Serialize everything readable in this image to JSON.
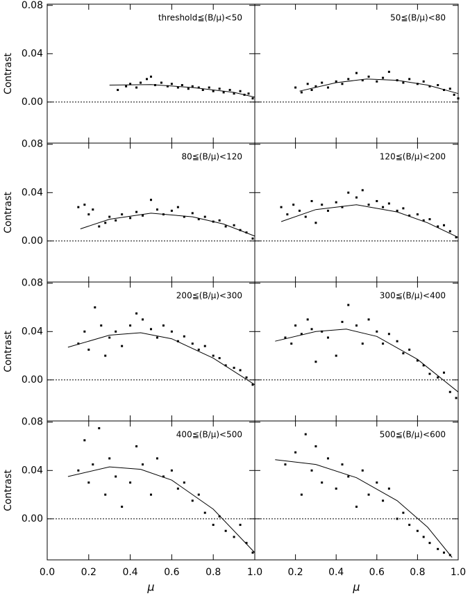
{
  "chart_data": [
    {
      "type": "scatter",
      "annotation": "threshold≦(B/μ)<50",
      "ylabel": "Contrast",
      "xlim": [
        0,
        1
      ],
      "ylim": [
        -0.034,
        0.081
      ],
      "xticks": [
        0,
        0.2,
        0.4,
        0.6,
        0.8,
        1
      ],
      "yticks": [
        {
          "value": 0,
          "label": "0.00"
        },
        0.04,
        0.08
      ],
      "reference_line": 0,
      "x": [
        0.34,
        0.38,
        0.4,
        0.43,
        0.45,
        0.48,
        0.5,
        0.52,
        0.55,
        0.58,
        0.6,
        0.63,
        0.65,
        0.68,
        0.7,
        0.73,
        0.75,
        0.78,
        0.8,
        0.83,
        0.85,
        0.88,
        0.9,
        0.93,
        0.95,
        0.97,
        0.99
      ],
      "values": [
        0.01,
        0.013,
        0.015,
        0.012,
        0.016,
        0.019,
        0.021,
        0.014,
        0.016,
        0.013,
        0.015,
        0.012,
        0.014,
        0.011,
        0.013,
        0.012,
        0.01,
        0.012,
        0.009,
        0.011,
        0.008,
        0.01,
        0.007,
        0.009,
        0.006,
        0.007,
        0.003
      ],
      "fit": {
        "x": [
          0.3,
          0.5,
          0.7,
          0.9,
          1.0
        ],
        "values": [
          0.014,
          0.0145,
          0.012,
          0.008,
          0.004
        ]
      }
    },
    {
      "type": "scatter",
      "annotation": "50≦(B/μ)<80",
      "xlim": [
        0,
        1
      ],
      "ylim": [
        -0.034,
        0.081
      ],
      "xticks": [
        0,
        0.2,
        0.4,
        0.6,
        0.8,
        1
      ],
      "yticks": [
        0,
        0.04,
        0.08
      ],
      "reference_line": 0,
      "x": [
        0.2,
        0.23,
        0.26,
        0.28,
        0.3,
        0.33,
        0.36,
        0.4,
        0.43,
        0.46,
        0.5,
        0.53,
        0.56,
        0.6,
        0.63,
        0.66,
        0.7,
        0.73,
        0.76,
        0.8,
        0.83,
        0.86,
        0.9,
        0.93,
        0.96,
        0.98,
        1.0
      ],
      "values": [
        0.012,
        0.008,
        0.015,
        0.01,
        0.013,
        0.016,
        0.012,
        0.017,
        0.015,
        0.019,
        0.024,
        0.018,
        0.021,
        0.017,
        0.02,
        0.025,
        0.018,
        0.016,
        0.019,
        0.015,
        0.017,
        0.013,
        0.014,
        0.01,
        0.011,
        0.006,
        0.003
      ],
      "fit": {
        "x": [
          0.22,
          0.4,
          0.55,
          0.7,
          0.85,
          1.0
        ],
        "values": [
          0.009,
          0.016,
          0.019,
          0.018,
          0.014,
          0.007
        ]
      }
    },
    {
      "type": "scatter",
      "annotation": "80≦(B/μ)<120",
      "ylabel": "Contrast",
      "xlim": [
        0,
        1
      ],
      "ylim": [
        -0.034,
        0.081
      ],
      "xticks": [
        0,
        0.2,
        0.4,
        0.6,
        0.8,
        1
      ],
      "yticks": [
        {
          "value": 0,
          "label": "0.00"
        },
        0.04,
        0.08
      ],
      "reference_line": 0,
      "x": [
        0.15,
        0.18,
        0.2,
        0.22,
        0.25,
        0.28,
        0.3,
        0.33,
        0.36,
        0.4,
        0.43,
        0.46,
        0.5,
        0.53,
        0.56,
        0.6,
        0.63,
        0.66,
        0.7,
        0.73,
        0.76,
        0.8,
        0.83,
        0.86,
        0.9,
        0.93,
        0.96,
        0.99
      ],
      "values": [
        0.028,
        0.03,
        0.022,
        0.026,
        0.012,
        0.015,
        0.02,
        0.017,
        0.022,
        0.019,
        0.024,
        0.021,
        0.034,
        0.026,
        0.022,
        0.025,
        0.028,
        0.02,
        0.023,
        0.018,
        0.02,
        0.016,
        0.017,
        0.012,
        0.013,
        0.009,
        0.007,
        0.002
      ],
      "fit": {
        "x": [
          0.16,
          0.3,
          0.5,
          0.7,
          0.85,
          1.0
        ],
        "values": [
          0.01,
          0.018,
          0.023,
          0.02,
          0.014,
          0.004
        ]
      }
    },
    {
      "type": "scatter",
      "annotation": "120≦(B/μ)<200",
      "xlim": [
        0,
        1
      ],
      "ylim": [
        -0.034,
        0.081
      ],
      "xticks": [
        0,
        0.2,
        0.4,
        0.6,
        0.8,
        1
      ],
      "yticks": [
        0,
        0.04,
        0.08
      ],
      "reference_line": 0,
      "x": [
        0.13,
        0.16,
        0.19,
        0.22,
        0.25,
        0.28,
        0.3,
        0.33,
        0.36,
        0.4,
        0.43,
        0.46,
        0.5,
        0.53,
        0.56,
        0.6,
        0.63,
        0.66,
        0.7,
        0.73,
        0.76,
        0.8,
        0.83,
        0.86,
        0.9,
        0.93,
        0.96,
        0.99
      ],
      "values": [
        0.028,
        0.022,
        0.03,
        0.025,
        0.02,
        0.033,
        0.015,
        0.03,
        0.025,
        0.032,
        0.028,
        0.04,
        0.036,
        0.042,
        0.03,
        0.033,
        0.028,
        0.031,
        0.025,
        0.027,
        0.021,
        0.022,
        0.017,
        0.018,
        0.012,
        0.013,
        0.008,
        0.003
      ],
      "fit": {
        "x": [
          0.13,
          0.3,
          0.5,
          0.7,
          0.85,
          1.0
        ],
        "values": [
          0.016,
          0.026,
          0.03,
          0.024,
          0.015,
          0.003
        ]
      }
    },
    {
      "type": "scatter",
      "annotation": "200≦(B/μ)<300",
      "ylabel": "Contrast",
      "xlim": [
        0,
        1
      ],
      "ylim": [
        -0.034,
        0.081
      ],
      "xticks": [
        0,
        0.2,
        0.4,
        0.6,
        0.8,
        1
      ],
      "yticks": [
        {
          "value": 0,
          "label": "0.00"
        },
        0.04,
        0.08
      ],
      "reference_line": 0,
      "x": [
        0.15,
        0.18,
        0.2,
        0.23,
        0.26,
        0.28,
        0.3,
        0.33,
        0.36,
        0.4,
        0.43,
        0.46,
        0.5,
        0.53,
        0.56,
        0.6,
        0.63,
        0.66,
        0.7,
        0.73,
        0.76,
        0.8,
        0.83,
        0.86,
        0.9,
        0.93,
        0.96,
        0.99
      ],
      "values": [
        0.03,
        0.04,
        0.025,
        0.06,
        0.045,
        0.02,
        0.035,
        0.04,
        0.028,
        0.045,
        0.055,
        0.05,
        0.042,
        0.035,
        0.045,
        0.04,
        0.032,
        0.036,
        0.03,
        0.025,
        0.028,
        0.02,
        0.018,
        0.012,
        0.01,
        0.008,
        0.002,
        -0.004
      ],
      "fit": {
        "x": [
          0.1,
          0.3,
          0.45,
          0.6,
          0.8,
          1.0
        ],
        "values": [
          0.027,
          0.037,
          0.039,
          0.034,
          0.018,
          -0.004
        ]
      }
    },
    {
      "type": "scatter",
      "annotation": "300≦(B/μ)<400",
      "xlim": [
        0,
        1
      ],
      "ylim": [
        -0.034,
        0.081
      ],
      "xticks": [
        0,
        0.2,
        0.4,
        0.6,
        0.8,
        1
      ],
      "yticks": [
        0,
        0.04,
        0.08
      ],
      "reference_line": 0,
      "x": [
        0.15,
        0.18,
        0.2,
        0.23,
        0.26,
        0.28,
        0.3,
        0.33,
        0.36,
        0.4,
        0.43,
        0.46,
        0.5,
        0.53,
        0.56,
        0.6,
        0.63,
        0.66,
        0.7,
        0.73,
        0.76,
        0.8,
        0.83,
        0.86,
        0.9,
        0.93,
        0.96,
        0.99
      ],
      "values": [
        0.035,
        0.03,
        0.045,
        0.038,
        0.05,
        0.042,
        0.015,
        0.04,
        0.035,
        0.02,
        0.048,
        0.062,
        0.045,
        0.03,
        0.05,
        0.04,
        0.03,
        0.038,
        0.032,
        0.022,
        0.025,
        0.016,
        0.012,
        0.005,
        0.002,
        0.006,
        -0.01,
        -0.015
      ],
      "fit": {
        "x": [
          0.1,
          0.3,
          0.45,
          0.6,
          0.8,
          1.0
        ],
        "values": [
          0.032,
          0.04,
          0.042,
          0.036,
          0.017,
          -0.01
        ]
      }
    },
    {
      "type": "scatter",
      "annotation": "400≦(B/μ)<500",
      "ylabel": "Contrast",
      "xlabel": "μ",
      "xlim": [
        0,
        1
      ],
      "ylim": [
        -0.034,
        0.081
      ],
      "xticks": [
        {
          "value": 0,
          "label": "0.0"
        },
        0.2,
        0.4,
        0.6,
        0.8,
        {
          "value": 1,
          "label": "1.0"
        }
      ],
      "yticks": [
        {
          "value": 0,
          "label": "0.00"
        },
        0.04,
        0.08
      ],
      "reference_line": 0,
      "x": [
        0.15,
        0.18,
        0.2,
        0.22,
        0.25,
        0.28,
        0.3,
        0.33,
        0.36,
        0.4,
        0.43,
        0.46,
        0.5,
        0.53,
        0.56,
        0.6,
        0.63,
        0.66,
        0.7,
        0.73,
        0.76,
        0.8,
        0.83,
        0.86,
        0.9,
        0.93,
        0.96,
        0.99
      ],
      "values": [
        0.04,
        0.065,
        0.03,
        0.045,
        0.075,
        0.02,
        0.05,
        0.035,
        0.01,
        0.03,
        0.06,
        0.045,
        0.02,
        0.05,
        0.035,
        0.04,
        0.025,
        0.03,
        0.015,
        0.02,
        0.005,
        -0.005,
        0.002,
        -0.01,
        -0.015,
        -0.005,
        -0.02,
        -0.028
      ],
      "fit": {
        "x": [
          0.1,
          0.3,
          0.45,
          0.6,
          0.8,
          1.0
        ],
        "values": [
          0.035,
          0.043,
          0.041,
          0.032,
          0.008,
          -0.028
        ]
      }
    },
    {
      "type": "scatter",
      "annotation": "500≦(B/μ)<600",
      "xlabel": "μ",
      "xlim": [
        0,
        1
      ],
      "ylim": [
        -0.034,
        0.081
      ],
      "xticks": [
        0.2,
        0.4,
        0.6,
        0.8,
        {
          "value": 1,
          "label": "1.0"
        }
      ],
      "yticks": [
        0,
        0.04,
        0.08
      ],
      "reference_line": 0,
      "x": [
        0.15,
        0.2,
        0.23,
        0.25,
        0.28,
        0.3,
        0.33,
        0.36,
        0.4,
        0.43,
        0.46,
        0.5,
        0.53,
        0.56,
        0.6,
        0.63,
        0.66,
        0.7,
        0.73,
        0.76,
        0.8,
        0.83,
        0.86,
        0.9,
        0.93,
        0.96
      ],
      "values": [
        0.045,
        0.055,
        0.02,
        0.07,
        0.04,
        0.06,
        0.03,
        0.05,
        0.025,
        0.045,
        0.035,
        0.01,
        0.04,
        0.02,
        0.03,
        0.015,
        0.025,
        0.0,
        0.005,
        -0.005,
        -0.01,
        -0.015,
        -0.02,
        -0.025,
        -0.028,
        -0.03
      ],
      "fit": {
        "x": [
          0.1,
          0.3,
          0.5,
          0.7,
          0.85,
          0.97
        ],
        "values": [
          0.049,
          0.045,
          0.034,
          0.015,
          -0.007,
          -0.032
        ]
      }
    }
  ]
}
